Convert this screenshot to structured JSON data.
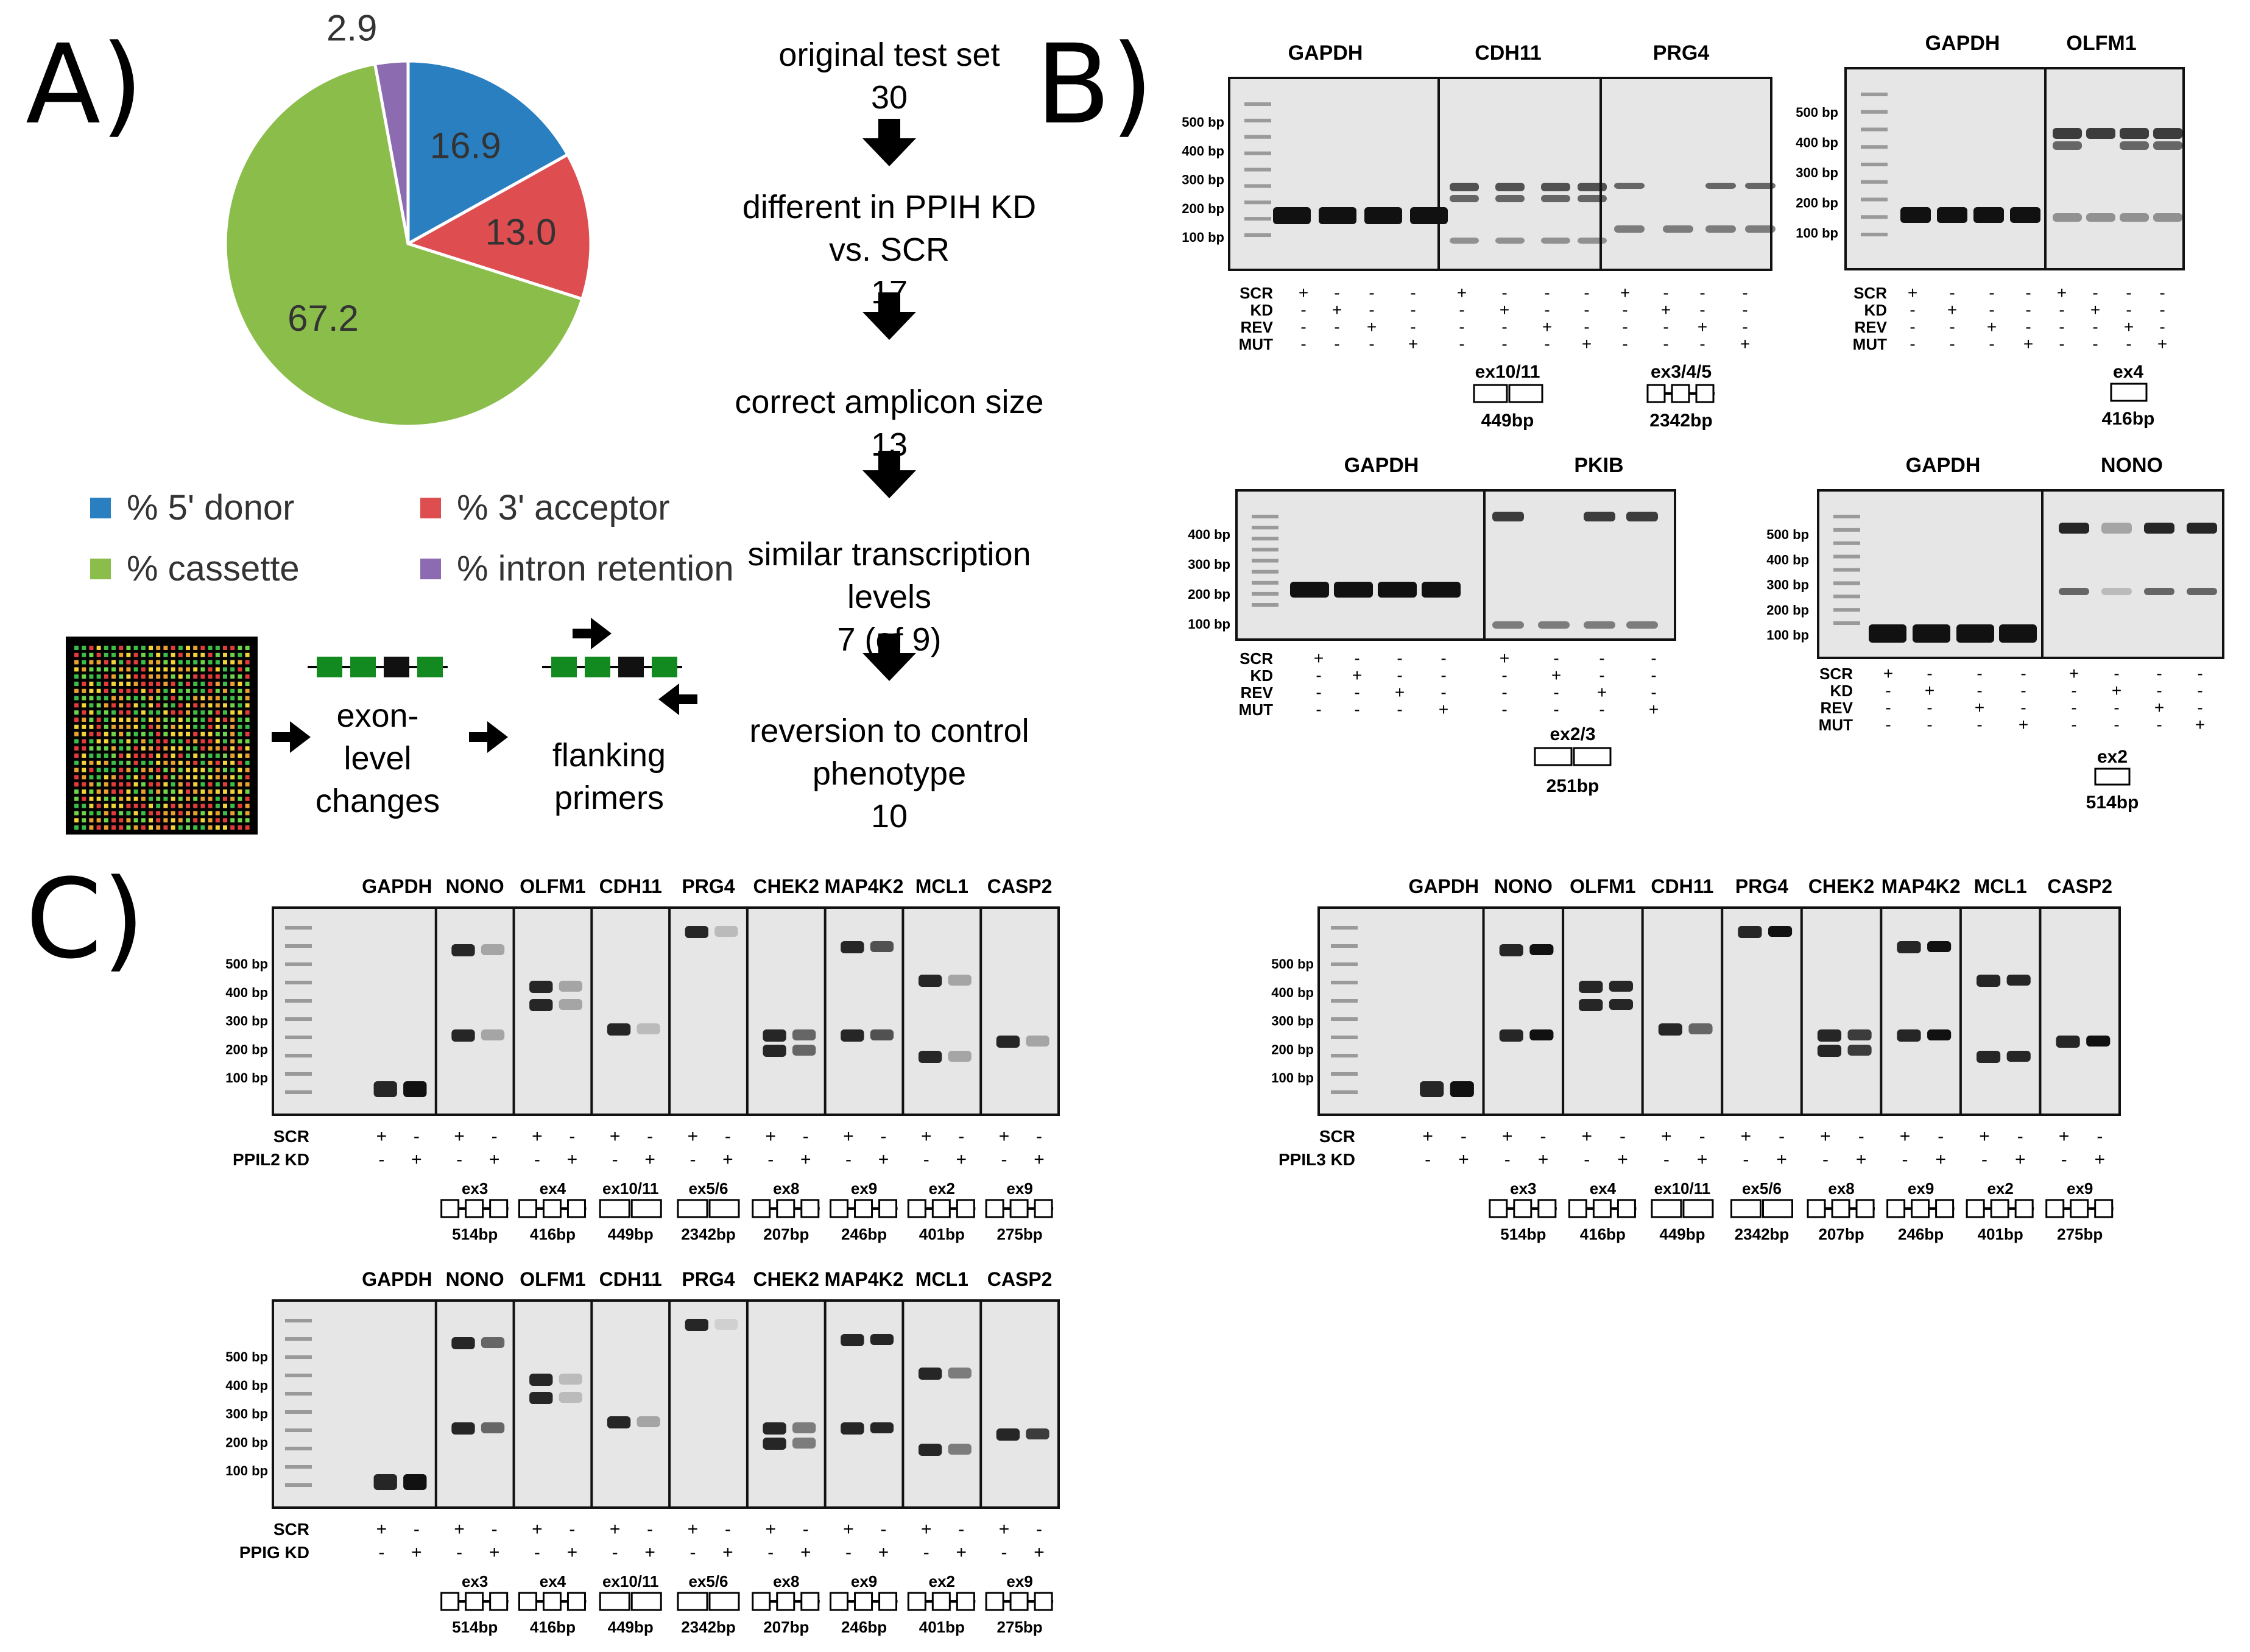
{
  "panel_labels": {
    "a": "A)",
    "b": "B)",
    "c": "C)"
  },
  "chart_data": {
    "type": "pie",
    "title": "",
    "slices": [
      {
        "label": "% 5' donor",
        "value": 16.9,
        "color": "#2a7fc1"
      },
      {
        "label": "% 3' acceptor",
        "value": 13.0,
        "color": "#de4d4f"
      },
      {
        "label": "% cassette",
        "value": 67.2,
        "color": "#8bbd4b"
      },
      {
        "label": "% intron retention",
        "value": 2.9,
        "color": "#8c6bb1"
      }
    ]
  },
  "workflow": {
    "step1": [
      "exon-",
      "level",
      "changes"
    ],
    "step2": [
      "flanking",
      "primers"
    ]
  },
  "flow": [
    {
      "lines": [
        "original test set"
      ],
      "count": "30"
    },
    {
      "lines": [
        "different in PPIH KD",
        "vs. SCR"
      ],
      "count": "17"
    },
    {
      "lines": [
        "correct amplicon size"
      ],
      "count": "13"
    },
    {
      "lines": [
        "similar transcription",
        "levels"
      ],
      "count": "7 (of 9)"
    },
    {
      "lines": [
        "reversion to control",
        "phenotype"
      ],
      "count": "10"
    }
  ],
  "colors": {
    "gel_bg": "#e9e9e9",
    "band": "#111111",
    "green_exon": "#138a1f"
  },
  "panel_b": [
    {
      "genes": [
        "GAPDH",
        "CDH11",
        "PRG4"
      ],
      "ladder": [
        "500 bp",
        "400 bp",
        "300 bp",
        "200 bp",
        "100 bp"
      ],
      "rows": [
        "SCR",
        "KD",
        "REV",
        "MUT"
      ],
      "exons": [
        {
          "label": "ex10/11",
          "size": "449bp"
        },
        {
          "label": "ex3/4/5",
          "size": "2342bp"
        }
      ]
    },
    {
      "genes": [
        "GAPDH",
        "OLFM1"
      ],
      "ladder": [
        "500 bp",
        "400 bp",
        "300 bp",
        "200 bp",
        "100 bp"
      ],
      "rows": [
        "SCR",
        "KD",
        "REV",
        "MUT"
      ],
      "exons": [
        {
          "label": "ex4",
          "size": "416bp"
        }
      ]
    },
    {
      "genes": [
        "GAPDH",
        "PKIB"
      ],
      "ladder": [
        "400 bp",
        "300 bp",
        "200 bp",
        "100 bp"
      ],
      "rows": [
        "SCR",
        "KD",
        "REV",
        "MUT"
      ],
      "exons": [
        {
          "label": "ex2/3",
          "size": "251bp"
        }
      ]
    },
    {
      "genes": [
        "GAPDH",
        "NONO"
      ],
      "ladder": [
        "500 bp",
        "400 bp",
        "300 bp",
        "200 bp",
        "100 bp"
      ],
      "rows": [
        "SCR",
        "KD",
        "REV",
        "MUT"
      ],
      "exons": [
        {
          "label": "ex2",
          "size": "514bp"
        }
      ]
    }
  ],
  "panel_c": {
    "genes": [
      "GAPDH",
      "NONO",
      "OLFM1",
      "CDH11",
      "PRG4",
      "CHEK2",
      "MAP4K2",
      "MCL1",
      "CASP2"
    ],
    "ladder": [
      "500 bp",
      "400 bp",
      "300 bp",
      "200 bp",
      "100 bp"
    ],
    "exons": [
      {
        "label": "ex3",
        "size": "514bp"
      },
      {
        "label": "ex4",
        "size": "416bp"
      },
      {
        "label": "ex10/11",
        "size": "449bp"
      },
      {
        "label": "ex5/6",
        "size": "2342bp"
      },
      {
        "label": "ex8",
        "size": "207bp"
      },
      {
        "label": "ex9",
        "size": "246bp"
      },
      {
        "label": "ex2",
        "size": "401bp"
      },
      {
        "label": "ex9",
        "size": "275bp"
      }
    ],
    "gels": [
      {
        "row1": "SCR",
        "row2": "PPIL2 KD"
      },
      {
        "row1": "SCR",
        "row2": "PPIL3 KD"
      },
      {
        "row1": "SCR",
        "row2": "PPIG KD"
      }
    ]
  }
}
